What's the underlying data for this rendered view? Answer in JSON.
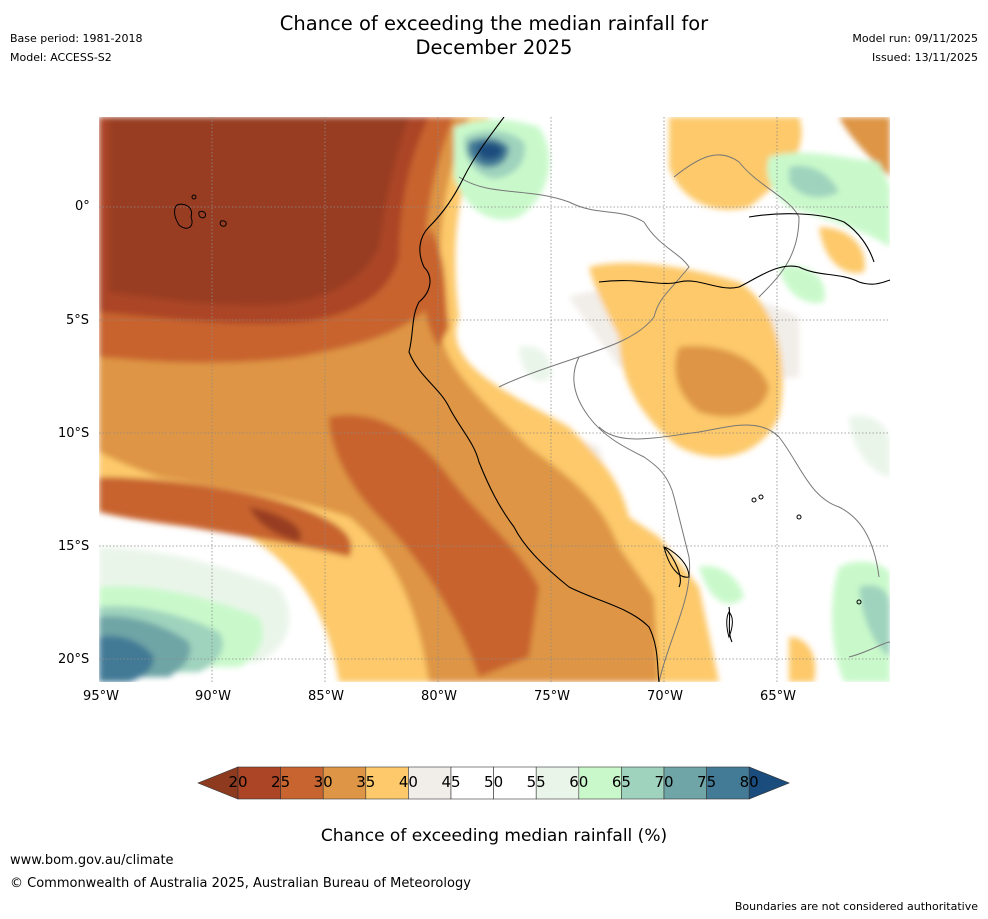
{
  "header": {
    "title_line1": "Chance of exceeding the median rainfall for",
    "title_line2": "December 2025",
    "base_period": "Base period: 1981-2018",
    "model": "Model: ACCESS-S2",
    "model_run": "Model run: 09/11/2025",
    "issued": "Issued: 13/11/2025"
  },
  "map": {
    "lat_labels": [
      "0°",
      "5°S",
      "10°S",
      "15°S",
      "20°S"
    ],
    "lon_labels": [
      "95°W",
      "90°W",
      "85°W",
      "80°W",
      "75°W",
      "70°W",
      "65°W"
    ]
  },
  "colorbar": {
    "ticks": [
      "20",
      "25",
      "30",
      "35",
      "40",
      "45",
      "50",
      "55",
      "60",
      "65",
      "70",
      "75",
      "80"
    ],
    "colors": [
      "#ab4526",
      "#c8642f",
      "#de9545",
      "#fdc96b",
      "#f1ede8",
      "#ffffff",
      "#ffffff",
      "#eaf5ea",
      "#c9f9cb",
      "#9fd3bd",
      "#6fa5a6",
      "#437a96"
    ],
    "under_color": "#8e3a1f",
    "over_color": "#1a4d7e",
    "label": "Chance of exceeding median rainfall (%)"
  },
  "footer": {
    "website": "www.bom.gov.au/climate",
    "copyright": "© Commonwealth of Australia 2025, Australian Bureau of Meteorology",
    "disclaimer": "Boundaries are not considered authoritative"
  }
}
